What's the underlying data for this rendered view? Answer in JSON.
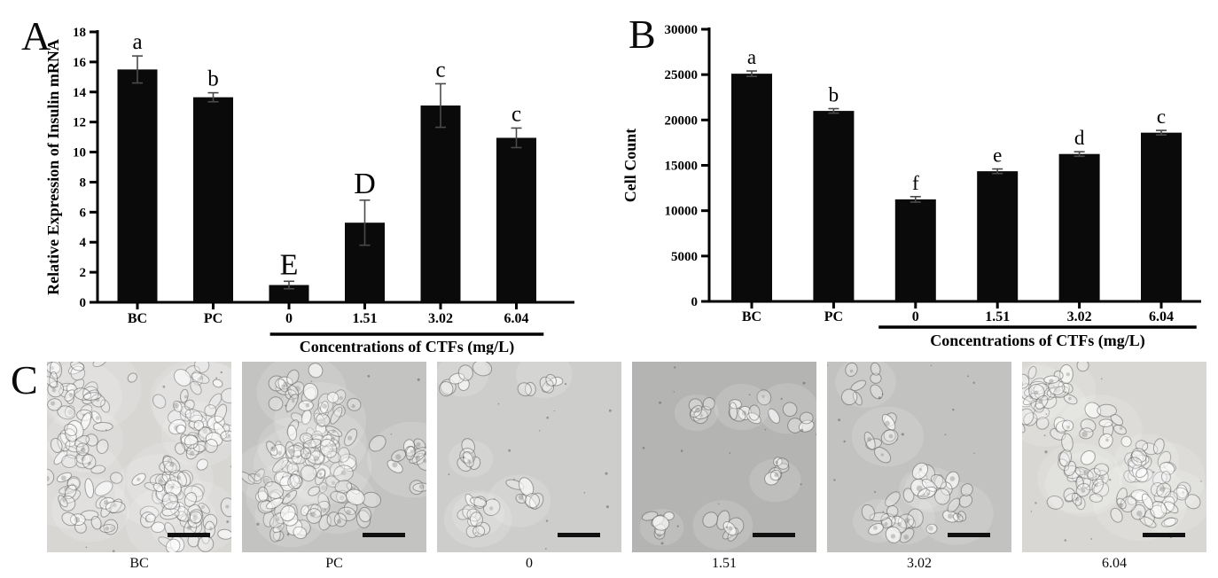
{
  "panels": {
    "a": {
      "label": "A"
    },
    "b": {
      "label": "B"
    },
    "c": {
      "label": "C"
    }
  },
  "chart_data": [
    {
      "type": "bar",
      "panel": "A",
      "title": "",
      "ylabel": "Relative Expression of Insulin mRNA",
      "xlabel": "",
      "categories": [
        "BC",
        "PC",
        "0",
        "1.51",
        "3.02",
        "6.04"
      ],
      "values": [
        15.5,
        13.65,
        1.15,
        5.3,
        13.1,
        10.95
      ],
      "errors": [
        0.9,
        0.3,
        0.25,
        1.5,
        1.45,
        0.65
      ],
      "sig_letters": [
        "a",
        "b",
        "E",
        "D",
        "c",
        "c"
      ],
      "ylim": [
        0,
        18
      ],
      "ytick_step": 2,
      "grid": false,
      "legend": "none",
      "group_label": "Concentrations of CTFs (mg/L)",
      "group_start_index": 2,
      "bar_color": "#0a0a0a",
      "error_color": "#4a4a4a",
      "axis_color": "#000000"
    },
    {
      "type": "bar",
      "panel": "B",
      "title": "",
      "ylabel": "Cell Count",
      "xlabel": "",
      "categories": [
        "BC",
        "PC",
        "0",
        "1.51",
        "3.02",
        "6.04"
      ],
      "values": [
        25100,
        21000,
        11250,
        14350,
        16250,
        18600
      ],
      "errors": [
        300,
        250,
        300,
        250,
        250,
        250
      ],
      "sig_letters": [
        "a",
        "b",
        "f",
        "e",
        "d",
        "c"
      ],
      "ylim": [
        0,
        30000
      ],
      "ytick_step": 5000,
      "grid": false,
      "legend": "none",
      "group_label": "Concentrations of CTFs (mg/L)",
      "group_start_index": 2,
      "bar_color": "#0a0a0a",
      "error_color": "#4a4a4a",
      "axis_color": "#000000"
    }
  ],
  "micrographs": {
    "panel": "C",
    "tiles": [
      {
        "label": "BC",
        "bg": "#d7d6d3",
        "coverage": 0.78
      },
      {
        "label": "PC",
        "bg": "#c3c3c1",
        "coverage": 0.66
      },
      {
        "label": "0",
        "bg": "#cdcdcb",
        "coverage": 0.16
      },
      {
        "label": "1.51",
        "bg": "#b4b4b2",
        "coverage": 0.2
      },
      {
        "label": "3.02",
        "bg": "#c2c2c0",
        "coverage": 0.28
      },
      {
        "label": "6.04",
        "bg": "#d8d7d3",
        "coverage": 0.55
      }
    ],
    "scalebar_color": "#111111"
  }
}
